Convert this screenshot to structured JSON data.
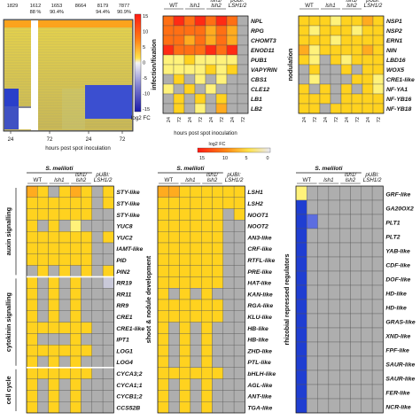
{
  "colors": {
    "na": "#aeaeae",
    "levels": [
      "#7a7acf",
      "#c9c9d9",
      "#fff27a",
      "#ffd21f",
      "#ffab1f",
      "#ff6f14",
      "#ff2b14"
    ],
    "neg": "#1f3ed1",
    "neg_light": "#5c6de0"
  },
  "overview": {
    "counts": [
      "1829",
      "1612",
      "1653",
      "8664",
      "8179",
      "7877"
    ],
    "percents": [
      "",
      "88 %",
      "90.4%",
      "",
      "94.4%",
      "90.9%"
    ],
    "x_ticks": [
      "24",
      "72",
      "24",
      "72"
    ],
    "xlabel": "hours post spot inoculation",
    "colorbar_ticks": [
      "15",
      "10",
      "5",
      "0",
      "-5",
      "-10",
      "-15"
    ],
    "colorbar_label": "log2 FC"
  },
  "legend": {
    "label": "log2 FC",
    "ticks": [
      "15",
      "10",
      "5",
      "0"
    ]
  },
  "chart_data": [
    {
      "type": "heatmap",
      "panel": "infection/fixation",
      "ylabel": "infection/fixation",
      "col_groups": [
        "WT",
        "lsh1",
        "lsh1/ lsh2",
        "pUBI: LSH1/2"
      ],
      "x_ticks": [
        "24",
        "72",
        "24",
        "72",
        "24",
        "72",
        "24",
        "72"
      ],
      "xlabel": "hours post spot inoculation",
      "rows": [
        "NPL",
        "RPG",
        "CHOMT3",
        "ENOD11",
        "PUB1",
        "VAPYRIN",
        "CBS1",
        "CLE12",
        "LB1",
        "LB2"
      ],
      "values": [
        [
          5,
          6,
          5,
          6,
          5,
          6,
          5,
          0
        ],
        [
          5,
          5,
          5,
          5,
          4,
          5,
          4,
          0
        ],
        [
          5,
          5,
          4,
          5,
          4,
          5,
          4,
          0
        ],
        [
          6,
          5,
          5,
          5,
          6,
          5,
          6,
          0
        ],
        [
          2,
          2,
          3,
          2,
          2,
          2,
          2,
          0
        ],
        [
          2,
          2,
          2,
          2,
          3,
          2,
          3,
          0
        ],
        [
          0,
          3,
          0,
          2,
          0,
          2,
          0,
          0
        ],
        [
          2,
          0,
          3,
          0,
          2,
          0,
          0,
          0
        ],
        [
          0,
          3,
          0,
          3,
          0,
          3,
          0,
          0
        ],
        [
          0,
          3,
          0,
          2,
          0,
          4,
          0,
          0
        ]
      ]
    },
    {
      "type": "heatmap",
      "panel": "nodulation",
      "ylabel": "nodulation",
      "col_groups": [
        "WT",
        "lsh1",
        "lsh1/ lsh2",
        "pUBI: LSH1/2"
      ],
      "x_ticks": [
        "24",
        "72",
        "24",
        "72",
        "24",
        "72",
        "24",
        "72"
      ],
      "rows": [
        "NSP1",
        "NSP2",
        "ERN1",
        "NIN",
        "LBD16",
        "WOX5",
        "CRE1-like",
        "NF-YA1",
        "NF-YB16",
        "NF-YB18"
      ],
      "values": [
        [
          3,
          3,
          3,
          2,
          3,
          3,
          4,
          3
        ],
        [
          3,
          2,
          3,
          3,
          3,
          2,
          3,
          3
        ],
        [
          3,
          3,
          3,
          2,
          3,
          3,
          3,
          3
        ],
        [
          4,
          2,
          3,
          3,
          3,
          3,
          4,
          3
        ],
        [
          3,
          2,
          0,
          3,
          2,
          3,
          3,
          3
        ],
        [
          0,
          3,
          0,
          0,
          3,
          0,
          3,
          3
        ],
        [
          0,
          2,
          0,
          0,
          0,
          3,
          3,
          2
        ],
        [
          3,
          0,
          3,
          0,
          3,
          0,
          3,
          2
        ],
        [
          3,
          3,
          3,
          0,
          3,
          3,
          3,
          3
        ],
        [
          3,
          3,
          0,
          3,
          3,
          3,
          3,
          3
        ]
      ]
    },
    {
      "type": "heatmap",
      "panel": "hormone",
      "group_labels": [
        "auxin signalling",
        "cytokinin signalling",
        "cell cycle"
      ],
      "header": "S. meliloti",
      "col_groups": [
        "WT",
        "lsh1",
        "lsh1/ lsh2",
        "pUBI: LSH1/2"
      ],
      "rows": [
        "STY-like",
        "STY-like",
        "STY-like",
        "YUC8",
        "YUC2",
        "IAMT-like",
        "PID",
        "PIN2",
        "RR19",
        "RR11",
        "RR9",
        "CRE1",
        "CRE1-like",
        "IPT1",
        "LOG1",
        "LOG4",
        "CYCA3;2",
        "CYCA1;1",
        "CYCB1;2",
        "CCS52B"
      ],
      "values": [
        [
          4,
          3,
          0,
          3,
          4,
          3,
          0,
          3
        ],
        [
          3,
          3,
          3,
          3,
          3,
          3,
          0,
          3
        ],
        [
          3,
          3,
          3,
          3,
          3,
          3,
          0,
          0
        ],
        [
          3,
          0,
          3,
          0,
          2,
          0,
          0,
          0
        ],
        [
          3,
          3,
          3,
          3,
          3,
          3,
          0,
          3
        ],
        [
          3,
          3,
          3,
          3,
          3,
          3,
          0,
          0
        ],
        [
          3,
          3,
          3,
          3,
          3,
          3,
          0,
          0
        ],
        [
          0,
          3,
          0,
          3,
          0,
          3,
          0,
          3
        ],
        [
          3,
          0,
          3,
          0,
          3,
          0,
          0,
          1
        ],
        [
          3,
          0,
          3,
          0,
          3,
          0,
          0,
          0
        ],
        [
          3,
          0,
          3,
          0,
          3,
          0,
          0,
          0
        ],
        [
          3,
          0,
          3,
          0,
          3,
          0,
          0,
          0
        ],
        [
          3,
          3,
          3,
          3,
          3,
          3,
          0,
          0
        ],
        [
          3,
          0,
          0,
          0,
          3,
          0,
          0,
          0
        ],
        [
          3,
          3,
          3,
          3,
          3,
          3,
          0,
          0
        ],
        [
          3,
          0,
          3,
          0,
          3,
          0,
          0,
          0
        ],
        [
          3,
          3,
          3,
          3,
          3,
          3,
          0,
          0
        ],
        [
          3,
          0,
          3,
          0,
          3,
          0,
          0,
          0
        ],
        [
          3,
          0,
          3,
          0,
          3,
          0,
          0,
          0
        ],
        [
          3,
          0,
          3,
          0,
          3,
          0,
          0,
          0
        ]
      ]
    },
    {
      "type": "heatmap",
      "panel": "shoot & nodule development",
      "ylabel": "shoot & nodule development",
      "header": "S. meliloti",
      "col_groups": [
        "WT",
        "lsh1",
        "lsh1/ lsh2",
        "pUBI: LSH1/2"
      ],
      "rows": [
        "LSH1",
        "LSH2",
        "NOOT1",
        "NOOT2",
        "AN3-like",
        "CRF-like",
        "RTFL-like",
        "PRE-like",
        "HAT-like",
        "KAN-like",
        "RGA-like",
        "KLU-like",
        "HB-like",
        "HB-like",
        "ZHD-like",
        "PTL-like",
        "bHLH-like",
        "AGL-like",
        "ANT-like",
        "TGA-like"
      ],
      "values": [
        [
          4,
          4,
          3,
          3,
          3,
          3,
          3,
          3
        ],
        [
          3,
          3,
          3,
          3,
          3,
          3,
          3,
          3
        ],
        [
          3,
          3,
          3,
          3,
          3,
          3,
          0,
          3
        ],
        [
          3,
          3,
          3,
          3,
          3,
          3,
          0,
          0
        ],
        [
          3,
          3,
          3,
          3,
          3,
          3,
          0,
          0
        ],
        [
          3,
          3,
          3,
          3,
          3,
          3,
          0,
          0
        ],
        [
          3,
          3,
          3,
          3,
          3,
          3,
          0,
          0
        ],
        [
          3,
          3,
          3,
          3,
          3,
          3,
          0,
          0
        ],
        [
          3,
          3,
          3,
          3,
          3,
          3,
          0,
          0
        ],
        [
          3,
          0,
          3,
          0,
          3,
          0,
          0,
          0
        ],
        [
          3,
          3,
          3,
          3,
          3,
          3,
          0,
          0
        ],
        [
          3,
          3,
          3,
          3,
          3,
          3,
          0,
          0
        ],
        [
          3,
          0,
          3,
          0,
          3,
          0,
          0,
          0
        ],
        [
          3,
          0,
          3,
          0,
          3,
          0,
          0,
          0
        ],
        [
          3,
          0,
          3,
          0,
          3,
          0,
          0,
          0
        ],
        [
          3,
          0,
          3,
          0,
          3,
          0,
          0,
          0
        ],
        [
          3,
          3,
          3,
          3,
          3,
          3,
          0,
          0
        ],
        [
          3,
          0,
          3,
          0,
          3,
          0,
          0,
          0
        ],
        [
          3,
          0,
          3,
          0,
          3,
          0,
          0,
          0
        ],
        [
          3,
          0,
          3,
          0,
          3,
          0,
          0,
          0
        ]
      ]
    },
    {
      "type": "heatmap",
      "panel": "rhizobial repressed regulators",
      "ylabel": "rhizobial repressed regulators",
      "header": "S. meliloti",
      "col_groups": [
        "WT",
        "lsh1",
        "lsh1/ lsh2",
        "pUBI: LSH1/2"
      ],
      "rows": [
        "GRF-like",
        "GA20OX2",
        "PLT1",
        "PLT2",
        "YAB-like",
        "CDF-like",
        "DOF-like",
        "HD-like",
        "HD-like",
        "GRAS-like",
        "XND-like",
        "FPF-like",
        "SAUR-like",
        "SAUR-like",
        "FER-like",
        "NCR-like"
      ],
      "values": [
        [
          2,
          0,
          0,
          0,
          0,
          0,
          0,
          0
        ],
        [
          -1,
          0,
          0,
          0,
          0,
          0,
          0,
          0
        ],
        [
          -1,
          -1,
          0,
          0,
          0,
          0,
          0,
          0
        ],
        [
          -1,
          0,
          0,
          0,
          0,
          0,
          0,
          0
        ],
        [
          -1,
          0,
          0,
          0,
          0,
          0,
          0,
          0
        ],
        [
          -1,
          0,
          0,
          0,
          0,
          0,
          0,
          0
        ],
        [
          -1,
          0,
          0,
          0,
          0,
          0,
          0,
          0
        ],
        [
          -1,
          0,
          0,
          0,
          0,
          0,
          0,
          0
        ],
        [
          -1,
          0,
          0,
          0,
          0,
          0,
          0,
          0
        ],
        [
          -1,
          0,
          0,
          0,
          0,
          0,
          0,
          0
        ],
        [
          -1,
          0,
          0,
          0,
          0,
          0,
          0,
          0
        ],
        [
          -1,
          0,
          0,
          0,
          0,
          0,
          0,
          0
        ],
        [
          -1,
          0,
          0,
          0,
          0,
          0,
          0,
          0
        ],
        [
          -1,
          0,
          0,
          0,
          0,
          0,
          0,
          0
        ],
        [
          -1,
          0,
          0,
          0,
          0,
          0,
          0,
          0
        ],
        [
          -1,
          0,
          0,
          0,
          0,
          0,
          0,
          0
        ]
      ]
    }
  ]
}
